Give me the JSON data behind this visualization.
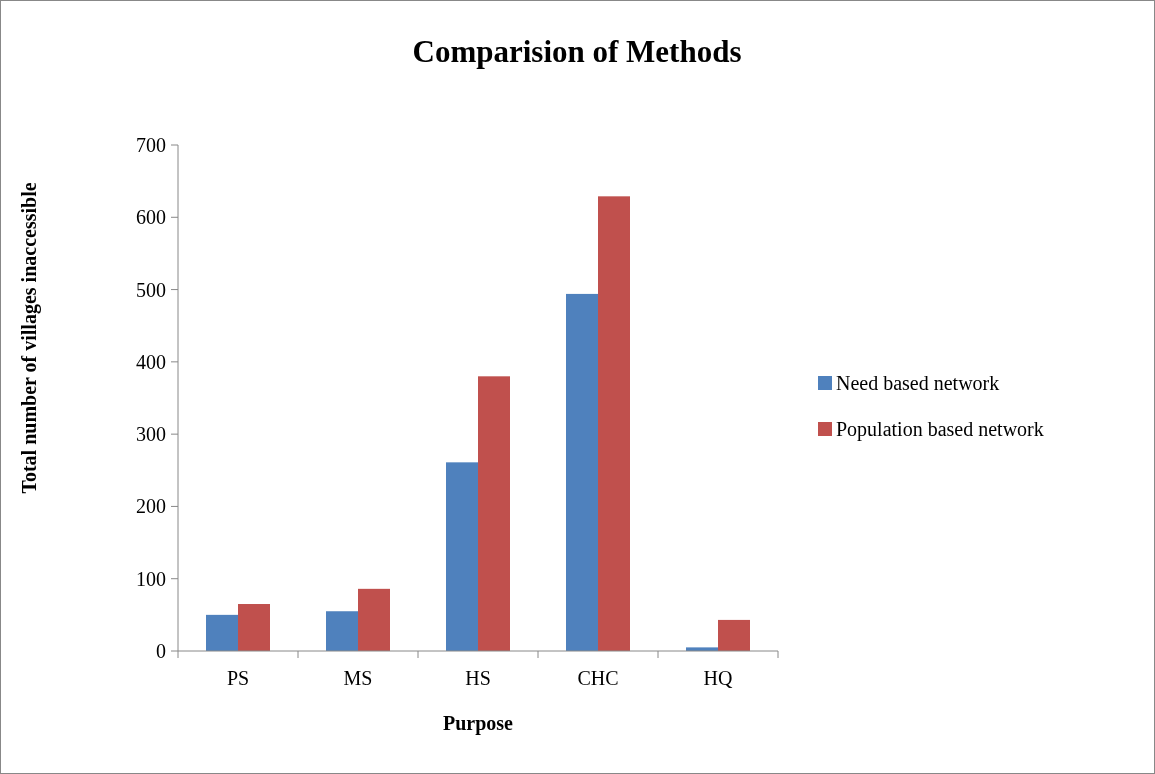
{
  "chart_data": {
    "type": "bar",
    "title": "Comparision of Methods",
    "xlabel": "Purpose",
    "ylabel": "Total number of villages inaccessible",
    "categories": [
      "PS",
      "MS",
      "HS",
      "CHC",
      "HQ"
    ],
    "series": [
      {
        "name": "Need based network",
        "color": "#4f81bd",
        "values": [
          50,
          55,
          261,
          494,
          5
        ]
      },
      {
        "name": "Population based network",
        "color": "#c0504d",
        "values": [
          65,
          86,
          380,
          629,
          43
        ]
      }
    ],
    "ylim": [
      0,
      700
    ],
    "yticks": [
      0,
      100,
      200,
      300,
      400,
      500,
      600,
      700
    ],
    "grid": false,
    "legend": "right"
  }
}
